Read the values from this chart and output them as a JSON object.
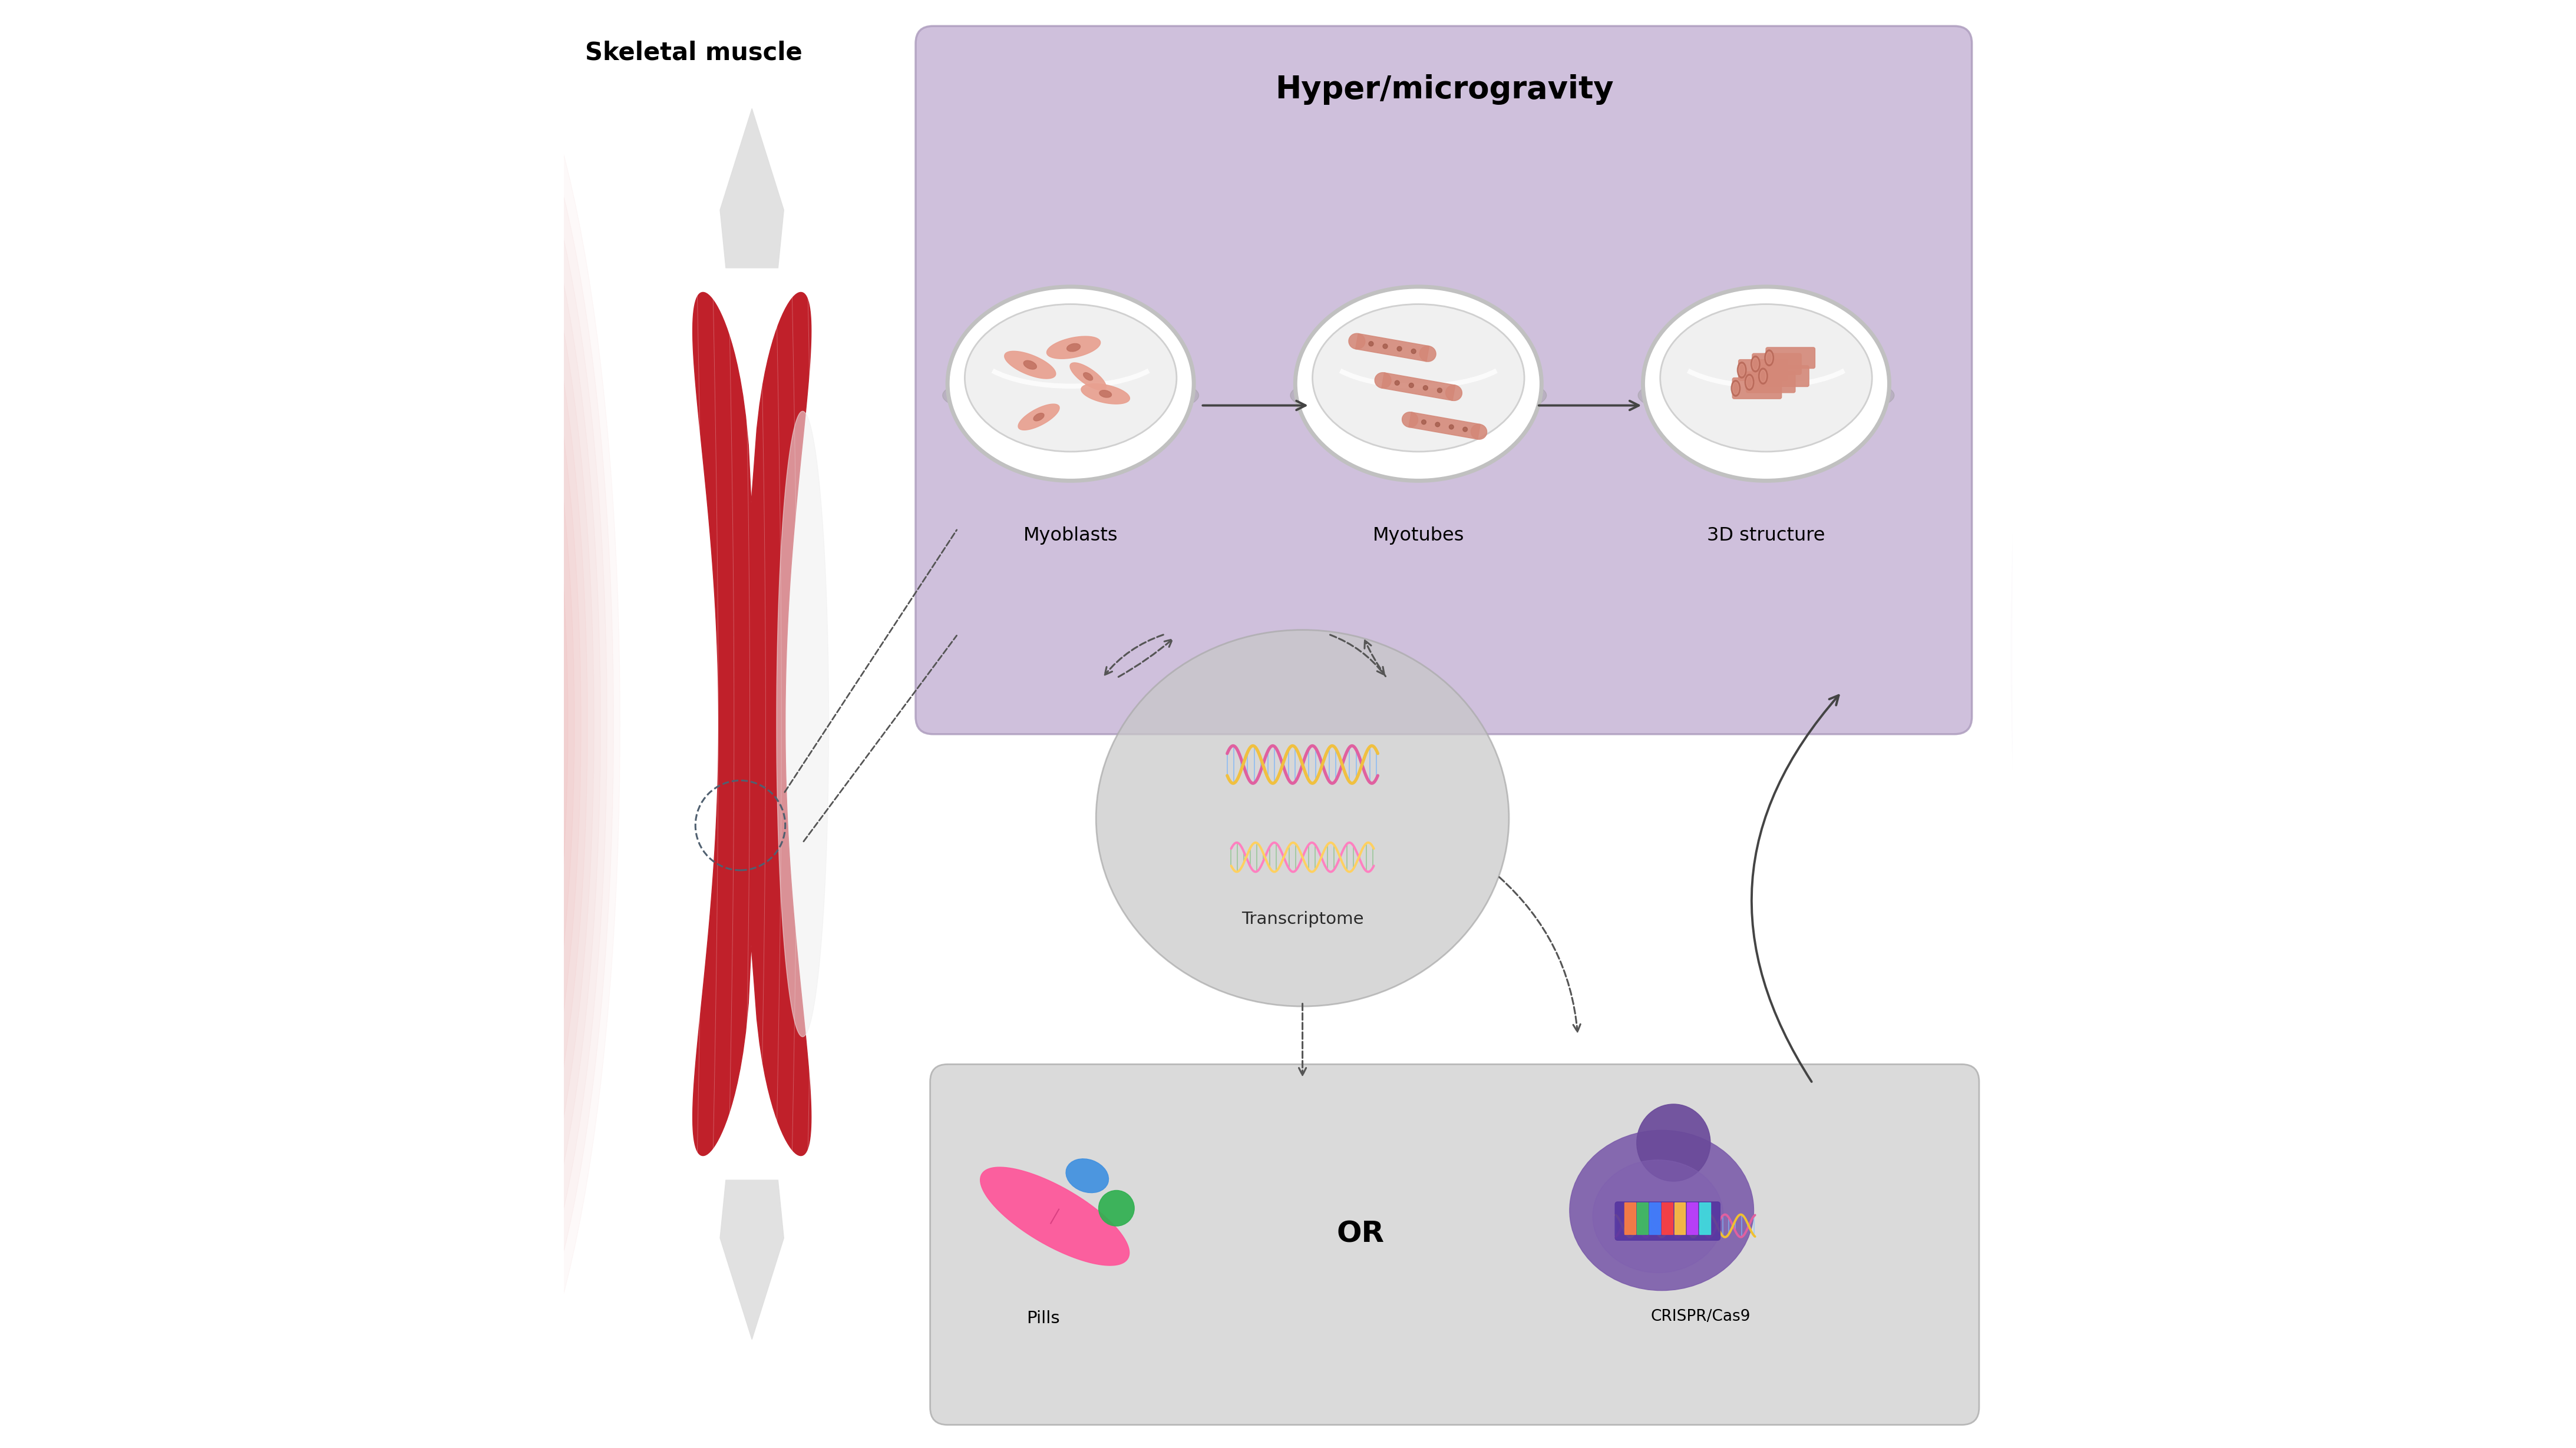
{
  "bg_color": "#ffffff",
  "fig_width": 43.72,
  "fig_height": 24.59,
  "title": "Hyper/microgravity",
  "skeletal_muscle_label": "Skeletal muscle",
  "myoblasts_label": "Myoblasts",
  "myotubes_label": "Myotubes",
  "structure_3d_label": "3D structure",
  "transcriptome_label": "Transcriptome",
  "pills_label": "Pills",
  "or_label": "OR",
  "crispr_label": "CRISPR/Cas9",
  "purple_box_color": "#c9b8d8",
  "gray_box_color": "#d4d4d4",
  "petri_inner_color": "#f0f0f0",
  "petri_rim_color": "#b0b0b0",
  "myoblast_color": "#e8a090",
  "myotube_color": "#d48878",
  "muscle_red": "#c0202a",
  "transcriptome_circle_color": "#c8c8c8",
  "arrow_color": "#444444",
  "dashed_arrow_color": "#555555"
}
